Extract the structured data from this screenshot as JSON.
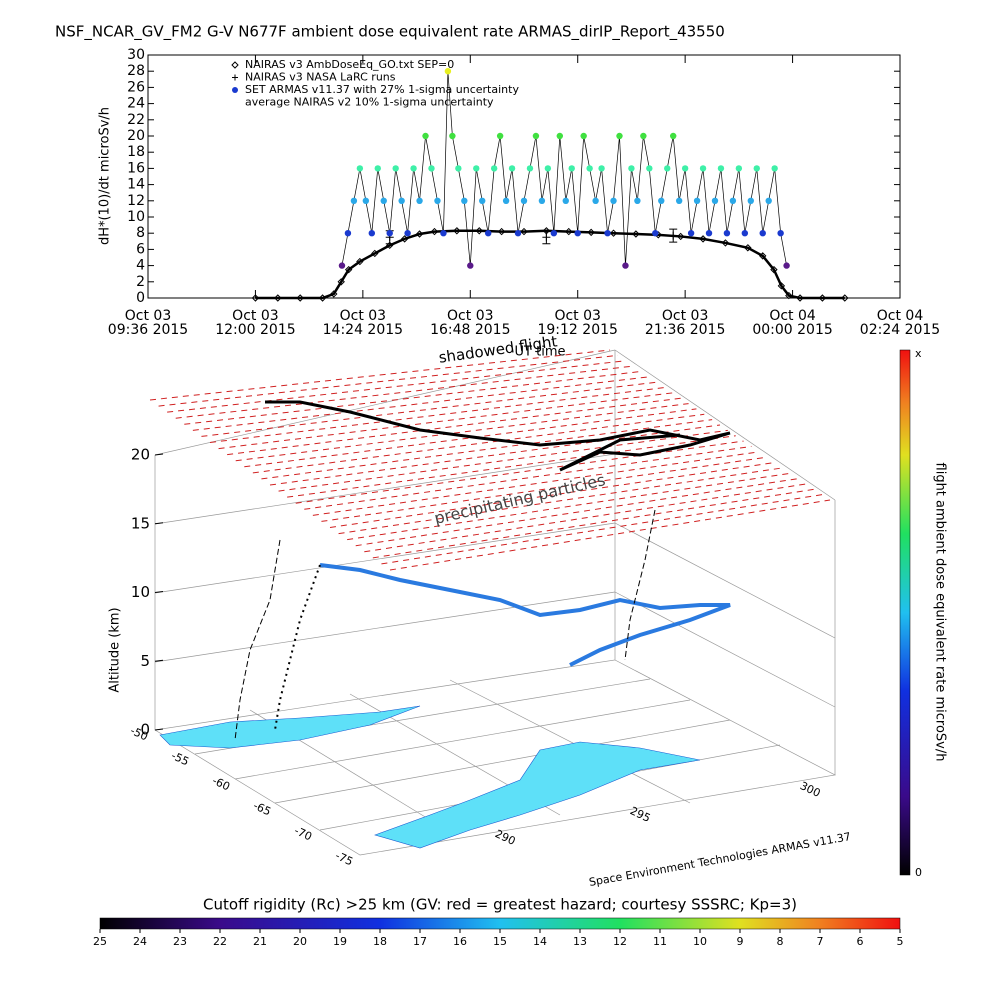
{
  "chart_data": [
    {
      "type": "scatter",
      "title": "NSF_NCAR_GV_FM2 G-V    N677F  ambient dose equivalent rate ARMAS_dirIP_Report_43550",
      "ylabel": "dH*(10)/dt microSv/h",
      "xlabel": "UT time",
      "annotation": "shadowed flight",
      "xlim": [
        "2015-10-03T09:36",
        "2015-10-04T02:24"
      ],
      "xticks": [
        {
          "value": "2015-10-03T09:36",
          "label": [
            "Oct 03",
            "09:36 2015"
          ]
        },
        {
          "value": "2015-10-03T12:00",
          "label": [
            "Oct 03",
            "12:00 2015"
          ]
        },
        {
          "value": "2015-10-03T14:24",
          "label": [
            "Oct 03",
            "14:24 2015"
          ]
        },
        {
          "value": "2015-10-03T16:48",
          "label": [
            "Oct 03",
            "16:48 2015"
          ]
        },
        {
          "value": "2015-10-03T19:12",
          "label": [
            "Oct 03",
            "19:12 2015"
          ]
        },
        {
          "value": "2015-10-03T21:36",
          "label": [
            "Oct 03",
            "21:36 2015"
          ]
        },
        {
          "value": "2015-10-04T00:00",
          "label": [
            "Oct 04",
            "00:00 2015"
          ]
        },
        {
          "value": "2015-10-04T02:24",
          "label": [
            "Oct 04",
            "02:24 2015"
          ]
        }
      ],
      "ylim": [
        0,
        30
      ],
      "yticks": [
        0,
        2,
        4,
        6,
        8,
        10,
        12,
        14,
        16,
        18,
        20,
        22,
        24,
        26,
        28,
        30
      ],
      "legend": "top-left",
      "colorscale": [
        [
          4,
          "#5a1a8a"
        ],
        [
          8,
          "#1a3acf"
        ],
        [
          12,
          "#2aa8e8"
        ],
        [
          16,
          "#3ef0a8"
        ],
        [
          20,
          "#40e040"
        ],
        [
          24,
          "#a8f040"
        ],
        [
          28,
          "#e8f020"
        ]
      ],
      "series": [
        {
          "name": "NAIRAS v3 AmbDoseEq_GO.txt SEP=0",
          "marker": "diamond",
          "color": "#000000",
          "x": [
            "2015-10-03T12:00",
            "2015-10-03T12:30",
            "2015-10-03T13:00",
            "2015-10-03T13:30",
            "2015-10-03T13:45",
            "2015-10-03T13:55",
            "2015-10-03T14:05",
            "2015-10-03T14:20",
            "2015-10-03T14:40",
            "2015-10-03T15:00",
            "2015-10-03T15:20",
            "2015-10-03T15:40",
            "2015-10-03T16:00",
            "2015-10-03T16:30",
            "2015-10-03T17:00",
            "2015-10-03T17:30",
            "2015-10-03T18:00",
            "2015-10-03T18:30",
            "2015-10-03T19:00",
            "2015-10-03T19:30",
            "2015-10-03T20:00",
            "2015-10-03T20:30",
            "2015-10-03T21:00",
            "2015-10-03T21:30",
            "2015-10-03T22:00",
            "2015-10-03T22:30",
            "2015-10-03T23:00",
            "2015-10-03T23:20",
            "2015-10-03T23:35",
            "2015-10-03T23:45",
            "2015-10-03T23:55",
            "2015-10-04T00:10",
            "2015-10-04T00:40",
            "2015-10-04T01:10"
          ],
          "values": [
            0,
            0,
            0,
            0,
            0.5,
            2,
            3.5,
            4.5,
            5.5,
            6.5,
            7.3,
            7.9,
            8.2,
            8.3,
            8.3,
            8.2,
            8.2,
            8.3,
            8.2,
            8.1,
            8,
            7.9,
            7.8,
            7.6,
            7.3,
            6.8,
            6.2,
            5.2,
            3.5,
            1.5,
            0.3,
            0,
            0,
            0
          ]
        },
        {
          "name": "NAIRAS v3 NASA LaRC runs",
          "marker": "plus",
          "color": "#000000",
          "x": [
            "2015-10-03T15:00",
            "2015-10-03T18:30",
            "2015-10-03T21:20"
          ],
          "values": [
            7.5,
            7.5,
            7.7
          ],
          "errors": [
            0.8,
            0.8,
            0.8
          ]
        },
        {
          "name": "SET ARMAS v11.37 with 27% 1-sigma uncertainty",
          "marker": "dot",
          "color": "#1a3acf",
          "x": [
            "2015-10-03T13:56",
            "2015-10-03T14:04",
            "2015-10-03T14:12",
            "2015-10-03T14:20",
            "2015-10-03T14:28",
            "2015-10-03T14:36",
            "2015-10-03T14:44",
            "2015-10-03T14:52",
            "2015-10-03T15:00",
            "2015-10-03T15:08",
            "2015-10-03T15:16",
            "2015-10-03T15:24",
            "2015-10-03T15:32",
            "2015-10-03T15:40",
            "2015-10-03T15:48",
            "2015-10-03T15:56",
            "2015-10-03T16:04",
            "2015-10-03T16:12",
            "2015-10-03T16:18",
            "2015-10-03T16:24",
            "2015-10-03T16:32",
            "2015-10-03T16:40",
            "2015-10-03T16:48",
            "2015-10-03T16:56",
            "2015-10-03T17:04",
            "2015-10-03T17:12",
            "2015-10-03T17:20",
            "2015-10-03T17:28",
            "2015-10-03T17:36",
            "2015-10-03T17:44",
            "2015-10-03T17:52",
            "2015-10-03T18:00",
            "2015-10-03T18:08",
            "2015-10-03T18:16",
            "2015-10-03T18:24",
            "2015-10-03T18:32",
            "2015-10-03T18:40",
            "2015-10-03T18:48",
            "2015-10-03T18:56",
            "2015-10-03T19:04",
            "2015-10-03T19:12",
            "2015-10-03T19:20",
            "2015-10-03T19:28",
            "2015-10-03T19:36",
            "2015-10-03T19:44",
            "2015-10-03T19:52",
            "2015-10-03T20:00",
            "2015-10-03T20:08",
            "2015-10-03T20:16",
            "2015-10-03T20:24",
            "2015-10-03T20:32",
            "2015-10-03T20:40",
            "2015-10-03T20:48",
            "2015-10-03T20:56",
            "2015-10-03T21:04",
            "2015-10-03T21:12",
            "2015-10-03T21:20",
            "2015-10-03T21:28",
            "2015-10-03T21:36",
            "2015-10-03T21:44",
            "2015-10-03T21:52",
            "2015-10-03T22:00",
            "2015-10-03T22:08",
            "2015-10-03T22:16",
            "2015-10-03T22:24",
            "2015-10-03T22:32",
            "2015-10-03T22:40",
            "2015-10-03T22:48",
            "2015-10-03T22:56",
            "2015-10-03T23:04",
            "2015-10-03T23:12",
            "2015-10-03T23:20",
            "2015-10-03T23:28",
            "2015-10-03T23:36",
            "2015-10-03T23:44",
            "2015-10-03T23:52"
          ],
          "values": [
            4,
            8,
            12,
            16,
            12,
            8,
            16,
            12,
            8,
            16,
            12,
            8,
            16,
            12,
            20,
            16,
            12,
            8,
            28,
            20,
            16,
            12,
            4,
            16,
            12,
            8,
            16,
            20,
            12,
            16,
            8,
            12,
            16,
            20,
            12,
            16,
            8,
            20,
            12,
            16,
            8,
            20,
            16,
            12,
            16,
            8,
            12,
            20,
            4,
            16,
            12,
            20,
            16,
            8,
            12,
            16,
            20,
            12,
            16,
            8,
            12,
            16,
            8,
            12,
            16,
            8,
            12,
            16,
            8,
            12,
            16,
            8,
            12,
            16,
            8,
            4
          ]
        },
        {
          "name": "average NAIRAS v2 10% 1-sigma uncertainty",
          "marker": "none",
          "color": "#000000",
          "x": [],
          "values": []
        }
      ]
    },
    {
      "type": "surface3d",
      "zlabel": "Altitude (km)",
      "zlim": [
        0,
        20
      ],
      "zticks": [
        0,
        5,
        10,
        15,
        20
      ],
      "yticks": [
        -50,
        -55,
        -60,
        -65,
        -70,
        -75
      ],
      "xticks": [
        290,
        295,
        300
      ],
      "annotations": [
        "precipitating particles",
        "Space Environment Technologies ARMAS v11.37"
      ],
      "colorbar": {
        "label": "flight ambient dose equivalent rate microSv/h",
        "ticklabels": [
          "x",
          "0"
        ]
      }
    },
    {
      "type": "colorbar",
      "title": "Cutoff rigidity (Rc) >25 km (GV: red = greatest hazard; courtesy SSSRC; Kp=3)",
      "lim": [
        25,
        5
      ],
      "ticks": [
        25,
        24,
        23,
        22,
        21,
        20,
        19,
        18,
        17,
        16,
        15,
        14,
        13,
        12,
        11,
        10,
        9,
        8,
        7,
        6,
        5
      ]
    }
  ]
}
